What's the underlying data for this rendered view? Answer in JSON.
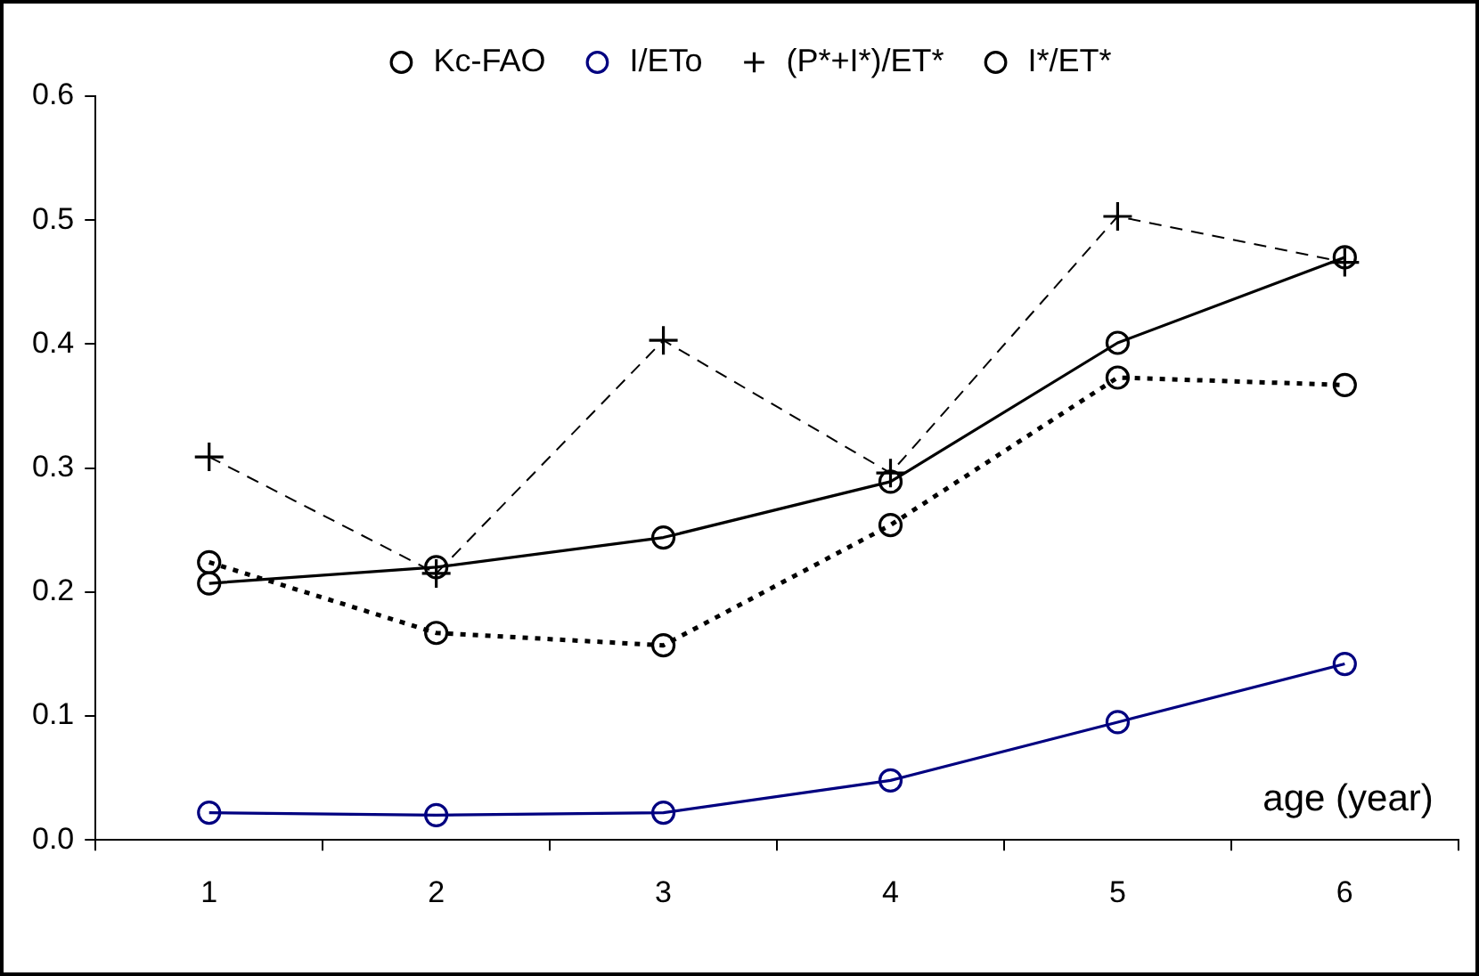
{
  "chart_data": {
    "type": "line",
    "xlabel": "age (year)",
    "categories": [
      "1",
      "2",
      "3",
      "4",
      "5",
      "6"
    ],
    "series": [
      {
        "name": "Kc-FAO",
        "color": "#000000",
        "values": [
          0.207,
          0.22,
          0.244,
          0.289,
          0.401,
          0.47
        ],
        "marker": "circle",
        "line_style": "solid"
      },
      {
        "name": "I/ETo",
        "color": "#000080",
        "values": [
          0.022,
          0.02,
          0.022,
          0.048,
          0.095,
          0.142
        ],
        "marker": "circle",
        "line_style": "solid"
      },
      {
        "name": "(P*+I*)/ET*",
        "color": "#000000",
        "values": [
          0.309,
          0.215,
          0.403,
          0.296,
          0.503,
          0.466
        ],
        "marker": "cross",
        "line_style": "dashed"
      },
      {
        "name": "I*/ET*",
        "color": "#000000",
        "values": [
          0.224,
          0.167,
          0.157,
          0.254,
          0.373,
          0.367
        ],
        "marker": "circle",
        "line_style": "dotted"
      }
    ],
    "ylim": [
      0,
      0.6
    ],
    "yticks": [
      {
        "value": 0,
        "label": "0.0"
      },
      0.1,
      0.2,
      0.3,
      0.4,
      0.5,
      0.6
    ],
    "grid": false,
    "legend": "top"
  }
}
